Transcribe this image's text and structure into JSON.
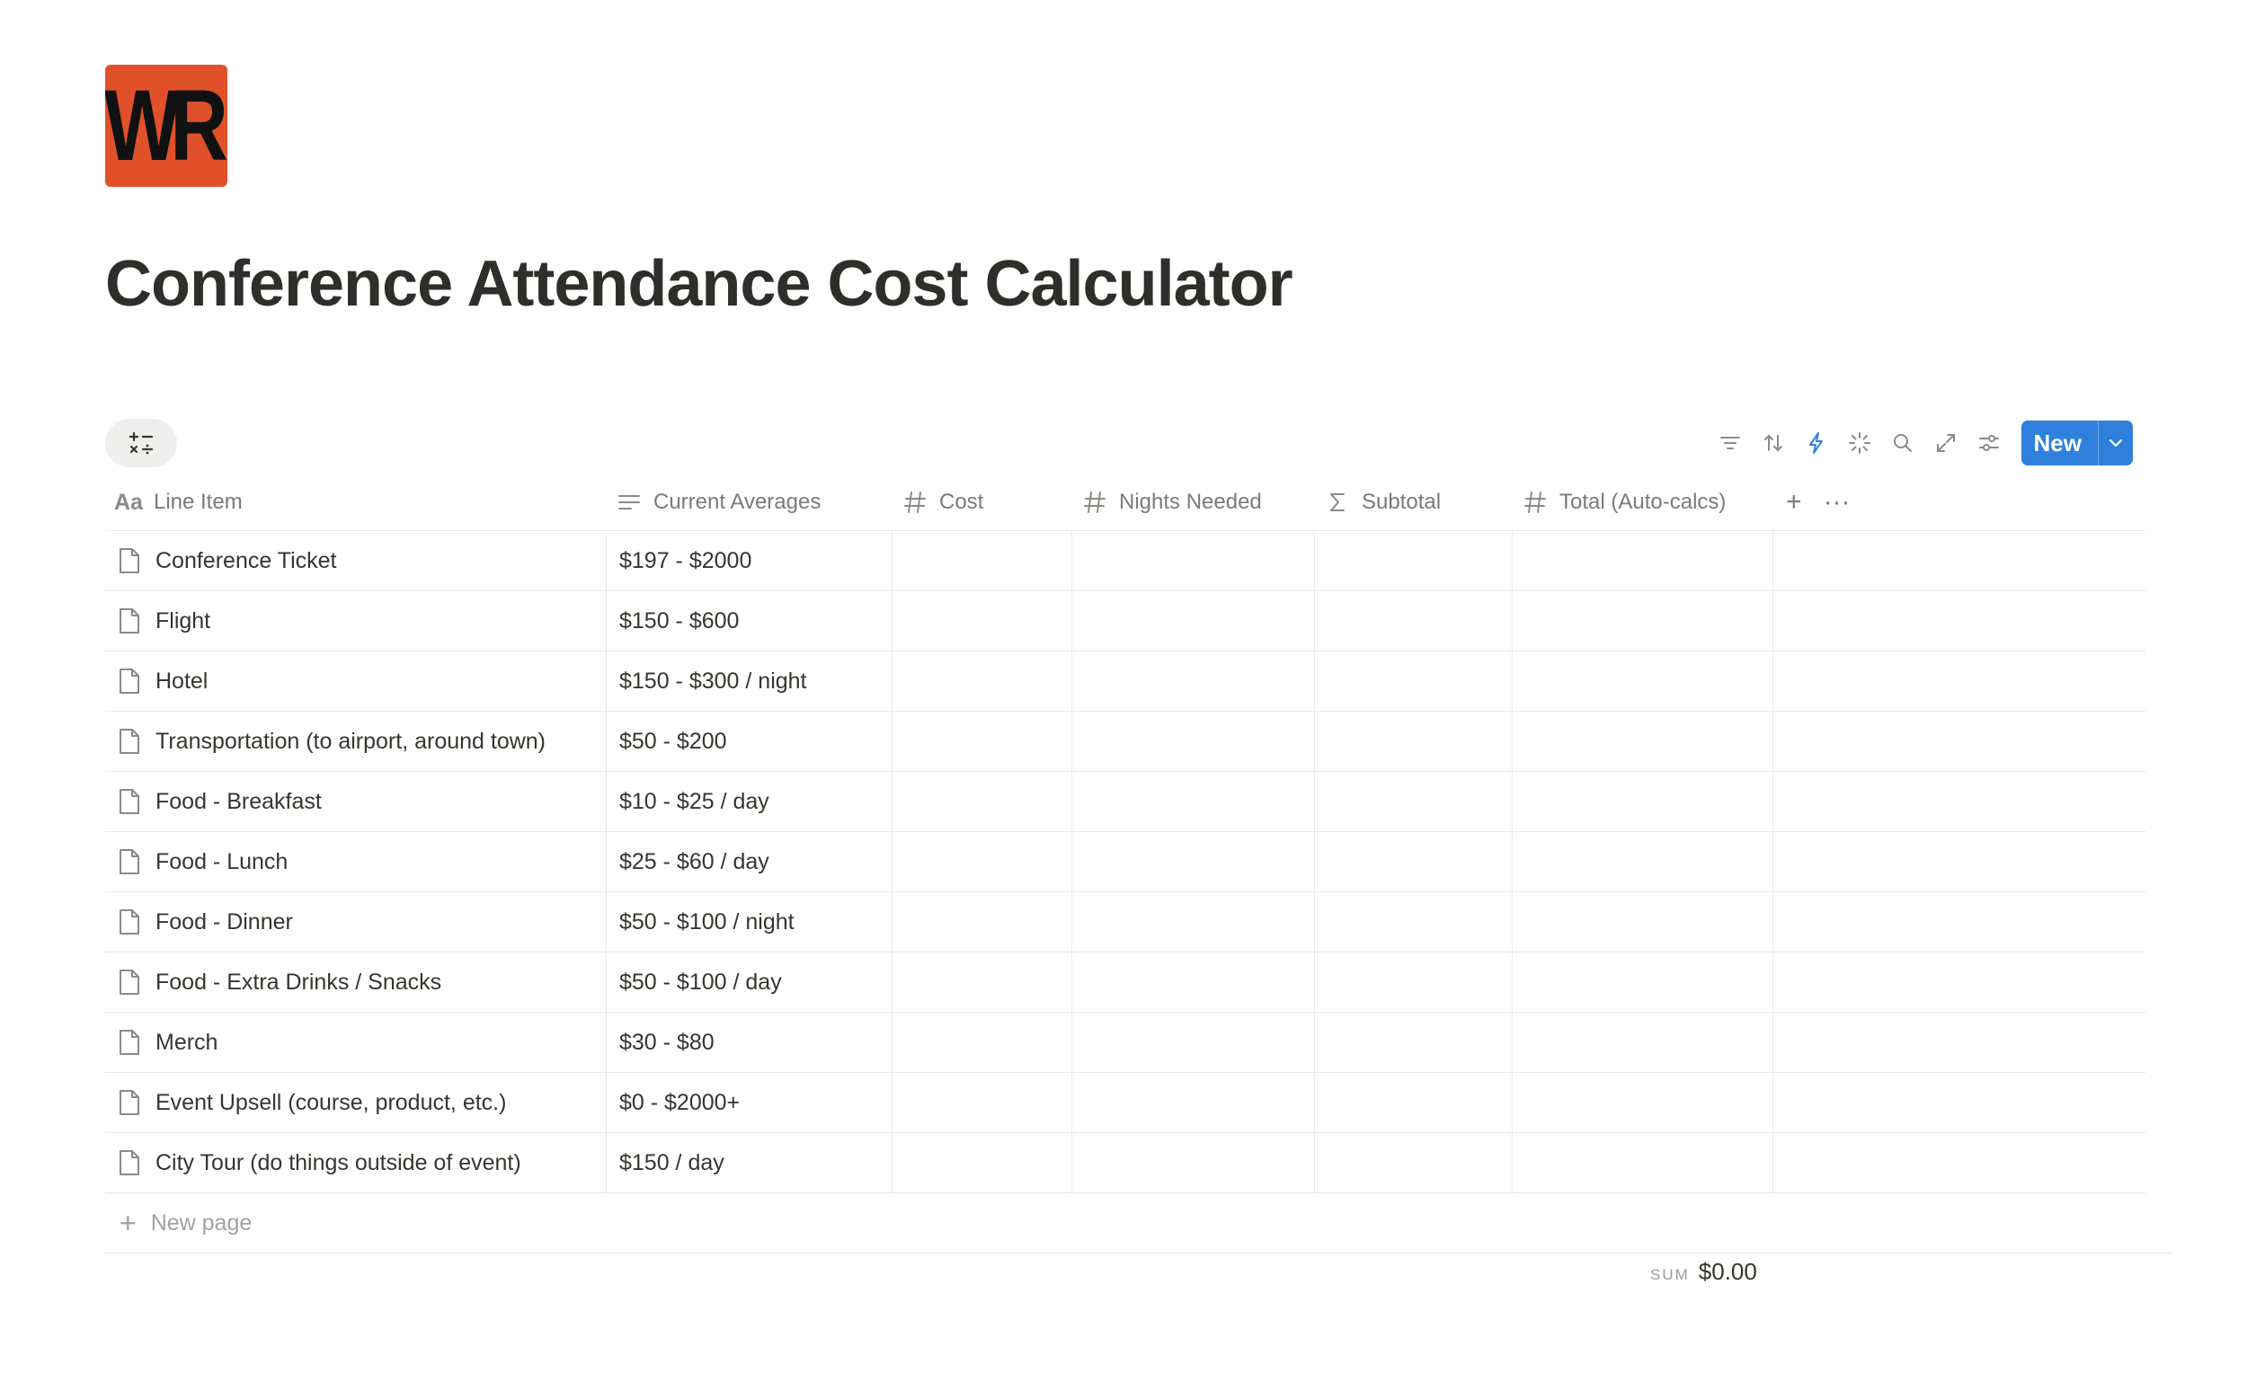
{
  "logo": {
    "text": "WR",
    "color": "#e0512b"
  },
  "title": "Conference Attendance Cost Calculator",
  "toolbar": {
    "icons": [
      "filter-icon",
      "sort-icon",
      "automation-icon",
      "ai-icon",
      "search-icon",
      "expand-icon",
      "settings-icon"
    ],
    "new_label": "New",
    "accent": "#2f80dc"
  },
  "columns": [
    {
      "label": "Line Item",
      "icon": "title-icon"
    },
    {
      "label": "Current Averages",
      "icon": "text-icon"
    },
    {
      "label": "Cost",
      "icon": "number-icon"
    },
    {
      "label": "Nights Needed",
      "icon": "number-icon"
    },
    {
      "label": "Subtotal",
      "icon": "formula-icon"
    },
    {
      "label": "Total (Auto-calcs)",
      "icon": "number-icon"
    }
  ],
  "rows": [
    {
      "item": "Conference Ticket",
      "avg": "$197 - $2000"
    },
    {
      "item": "Flight",
      "avg": "$150 - $600"
    },
    {
      "item": "Hotel",
      "avg": "$150 - $300 / night"
    },
    {
      "item": "Transportation (to airport, around town)",
      "avg": "$50 - $200"
    },
    {
      "item": "Food - Breakfast",
      "avg": "$10 - $25 / day"
    },
    {
      "item": "Food - Lunch",
      "avg": "$25 - $60 / day"
    },
    {
      "item": "Food - Dinner",
      "avg": "$50 - $100 / night"
    },
    {
      "item": "Food - Extra Drinks / Snacks",
      "avg": "$50 - $100 / day"
    },
    {
      "item": "Merch",
      "avg": "$30 - $80"
    },
    {
      "item": "Event Upsell (course, product, etc.)",
      "avg": "$0 - $2000+"
    },
    {
      "item": "City Tour (do things outside of event)",
      "avg": "$150 / day"
    }
  ],
  "new_page_label": "New page",
  "sum": {
    "label": "SUM",
    "value": "$0.00"
  }
}
